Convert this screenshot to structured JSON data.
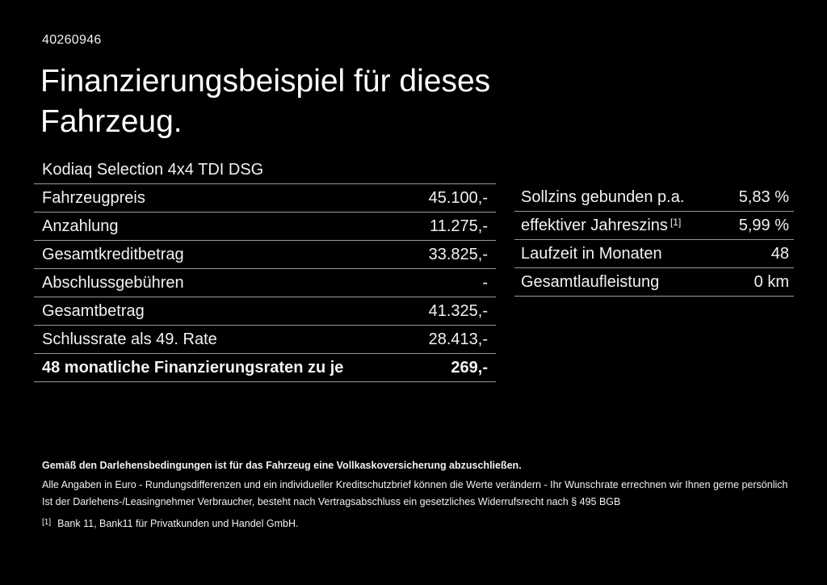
{
  "page": {
    "doc_id": "40260946",
    "title_line1": "Finanzierungsbeispiel für dieses",
    "title_line2": "Fahrzeug.",
    "vehicle_model": "Kodiaq Selection 4x4 TDI DSG"
  },
  "financing_table": {
    "rows": [
      {
        "label": "Fahrzeugpreis",
        "value": "45.100,-"
      },
      {
        "label": "Anzahlung",
        "value": "11.275,-"
      },
      {
        "label": "Gesamtkreditbetrag",
        "value": "33.825,-"
      },
      {
        "label": "Abschlussgebühren",
        "value": "-"
      },
      {
        "label": "Gesamtbetrag",
        "value": "41.325,-"
      },
      {
        "label": "Schlussrate als 49. Rate",
        "value": "28.413,-"
      },
      {
        "label": "48 monatliche Finanzierungsraten zu je",
        "value": "269,-"
      }
    ]
  },
  "conditions_table": {
    "rows": [
      {
        "label": "Sollzins gebunden p.a.",
        "sup": "",
        "value": "5,83 %"
      },
      {
        "label": "effektiver Jahreszins",
        "sup": "[1]",
        "value": "5,99 %"
      },
      {
        "label": "Laufzeit in Monaten",
        "sup": "",
        "value": "48"
      },
      {
        "label": "Gesamtlaufleistung",
        "sup": "",
        "value": "0 km"
      }
    ]
  },
  "footer": {
    "insurance_note": "Gemäß den Darlehensbedingungen ist für das Fahrzeug eine Vollkaskoversicherung abzuschließen.",
    "note_line1": "Alle Angaben in Euro - Rundungsdifferenzen und ein individueller Kreditschutzbrief können die Werte verändern - Ihr Wunschrate errechnen wir Ihnen gerne persönlich",
    "note_line2": "Ist der Darlehens-/Leasingnehmer Verbraucher, besteht nach Vertragsabschluss ein gesetzliches Widerrufsrecht nach § 495 BGB",
    "footnote_marker": "[1]",
    "footnote_text": "Bank 11, Bank11 für Privatkunden und Handel GmbH."
  },
  "colors": {
    "background": "#000000",
    "text": "#f2f2f2",
    "title_text": "#ffffff",
    "divider": "#999999"
  }
}
